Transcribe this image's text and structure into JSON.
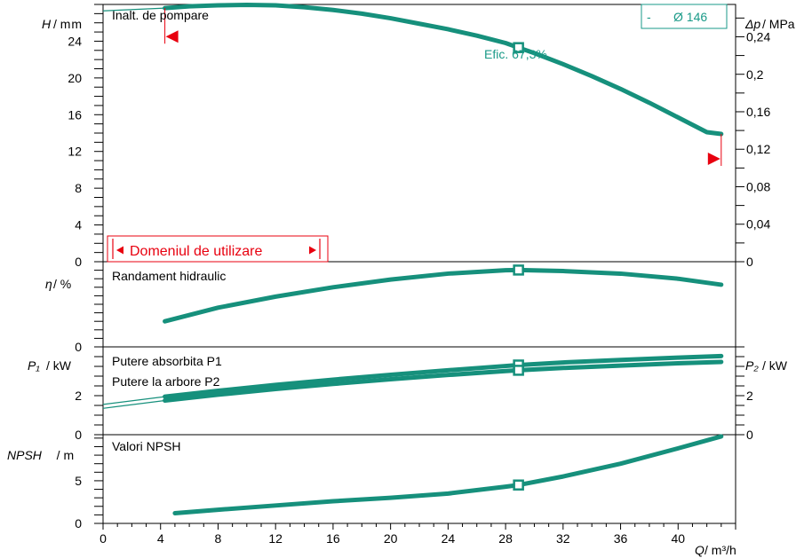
{
  "colors": {
    "curve": "#16907c",
    "accent": "#e8000f",
    "frame": "#000000",
    "label_teal": "#1a9a88"
  },
  "chart_data": {
    "type": "line",
    "x": {
      "label_symbol": "Q",
      "label_unit": " / m³/h",
      "min": 0,
      "max": 44,
      "ticks": [
        0,
        4,
        8,
        12,
        16,
        20,
        24,
        28,
        32,
        36,
        40
      ],
      "tick_labels": [
        "0",
        "4",
        "8",
        "12",
        "16",
        "20",
        "24",
        "28",
        "32",
        "36",
        "40"
      ]
    },
    "panels": [
      {
        "id": "head",
        "title": "Inalt. de pompare",
        "y_symbol": "H",
        "y_unit": " / m",
        "ylim": [
          0,
          28
        ],
        "ticks": [
          0,
          4,
          8,
          12,
          16,
          20,
          24
        ],
        "tick_labels": [
          "0",
          "4",
          "8",
          "12",
          "16",
          "20",
          "24"
        ],
        "top_label": "m",
        "right_axis": {
          "symbol": "Δp",
          "unit": " / MPa",
          "ticks": [
            0,
            4.08,
            8.16,
            12.24,
            16.32,
            20.39,
            24.47
          ],
          "tick_labels": [
            "0",
            "0,04",
            "0,08",
            "0,12",
            "0,16",
            "0,2",
            "0,24"
          ]
        },
        "series": [
          {
            "name": "Ø 146",
            "x": [
              4.3,
              6,
              8,
              10,
              12,
              14,
              16,
              18,
              20,
              22,
              24,
              26,
              28,
              28.9,
              30,
              32,
              34,
              36,
              38,
              40,
              42,
              43
            ],
            "y": [
              27.6,
              27.8,
              27.9,
              27.95,
              27.9,
              27.7,
              27.4,
              27.0,
              26.5,
              25.9,
              25.3,
              24.6,
              23.8,
              23.3,
              22.7,
              21.5,
              20.2,
              18.8,
              17.3,
              15.7,
              14.1,
              13.9
            ]
          }
        ],
        "extension": {
          "x": [
            0,
            4.3
          ],
          "y": [
            27.3,
            27.6
          ]
        },
        "marker": {
          "x": 28.9,
          "y": 23.3,
          "label": "Efic.  67,3%"
        },
        "legend_prefix": "-",
        "legend_curve": "Ø 146",
        "range_label": "Domeniul de utilizare",
        "range_start_x": 4.3,
        "range_start_y": 24.5,
        "range_end_x": 43,
        "range_end_y": 11.2
      },
      {
        "id": "eff",
        "title": "Randament hidraulic",
        "y_symbol": "η",
        "y_unit": " / %",
        "ylim": [
          0,
          100
        ],
        "ticks": [
          0
        ],
        "tick_labels": [
          "0"
        ],
        "series": [
          {
            "name": "Randament hidraulic",
            "x": [
              4.3,
              8,
              12,
              16,
              20,
              24,
              28,
              28.9,
              32,
              36,
              40,
              43
            ],
            "y": [
              30,
              46,
              59,
              70,
              79,
              86,
              90,
              90.2,
              89,
              86,
              80,
              73
            ]
          }
        ],
        "marker": {
          "x": 28.9,
          "y": 90.2
        }
      },
      {
        "id": "power",
        "titles": [
          "Putere absorbita P1",
          "Putere la arbore P2"
        ],
        "y_symbol": "P₁",
        "y_unit": " / kW",
        "ylim": [
          0,
          4.5
        ],
        "ticks": [
          0,
          2
        ],
        "tick_labels": [
          "0",
          "2"
        ],
        "right_axis": {
          "symbol": "P₂",
          "unit": " / kW",
          "ticks": [
            0,
            2
          ],
          "tick_labels": [
            "0",
            "2"
          ]
        },
        "series": [
          {
            "name": "Putere absorbita P1",
            "x": [
              4.3,
              8,
              12,
              16,
              20,
              24,
              28,
              28.9,
              32,
              36,
              40,
              43
            ],
            "y": [
              1.95,
              2.25,
              2.55,
              2.82,
              3.07,
              3.3,
              3.52,
              3.57,
              3.7,
              3.83,
              3.95,
              4.03
            ]
          },
          {
            "name": "Putere la arbore P2",
            "x": [
              4.3,
              8,
              12,
              16,
              20,
              24,
              28,
              28.9,
              32,
              36,
              40,
              43
            ],
            "y": [
              1.75,
              2.05,
              2.34,
              2.6,
              2.84,
              3.06,
              3.26,
              3.3,
              3.42,
              3.54,
              3.66,
              3.73
            ]
          }
        ],
        "extensions": [
          {
            "x": [
              0,
              4.3
            ],
            "y": [
              1.55,
              1.95
            ]
          },
          {
            "x": [
              0,
              4.3
            ],
            "y": [
              1.35,
              1.75
            ]
          }
        ],
        "markers": [
          {
            "x": 28.9,
            "y": 3.57
          },
          {
            "x": 28.9,
            "y": 3.3
          }
        ]
      },
      {
        "id": "npsh",
        "title": "Valori NPSH",
        "y_symbol": "NPSH",
        "y_unit": "   / m",
        "ylim": [
          0,
          10.4
        ],
        "ticks": [
          0,
          5
        ],
        "tick_labels": [
          "0",
          "5"
        ],
        "series": [
          {
            "name": "Valori NPSH",
            "x": [
              5,
              8,
              12,
              16,
              20,
              24,
              28,
              28.9,
              32,
              36,
              40,
              43
            ],
            "y": [
              1.2,
              1.6,
              2.1,
              2.6,
              3.0,
              3.5,
              4.3,
              4.5,
              5.5,
              7.0,
              8.8,
              10.2
            ]
          }
        ],
        "marker": {
          "x": 28.9,
          "y": 4.5
        }
      }
    ]
  }
}
